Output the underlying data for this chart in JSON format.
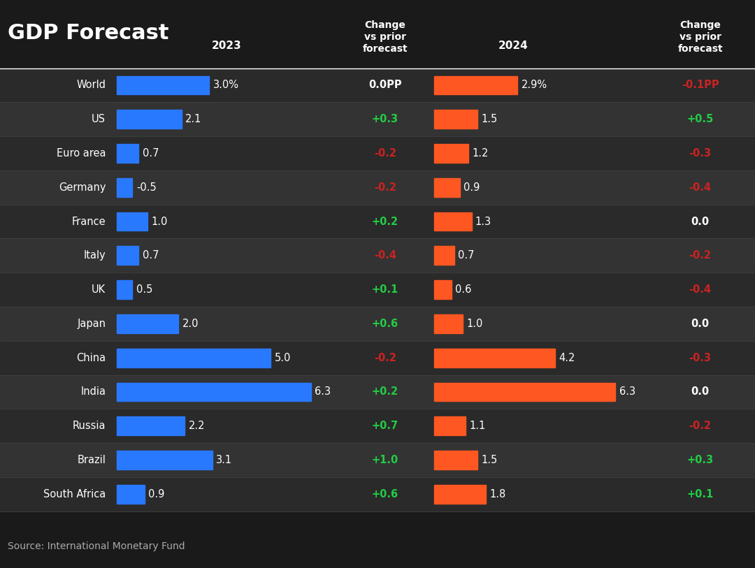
{
  "title": "GDP Forecast",
  "source": "Source: International Monetary Fund",
  "background_color": "#1a1a1a",
  "text_color": "#ffffff",
  "countries": [
    "World",
    "US",
    "Euro area",
    "Germany",
    "France",
    "Italy",
    "UK",
    "Japan",
    "China",
    "India",
    "Russia",
    "Brazil",
    "South Africa"
  ],
  "val_2023": [
    3.0,
    2.1,
    0.7,
    -0.5,
    1.0,
    0.7,
    0.5,
    2.0,
    5.0,
    6.3,
    2.2,
    3.1,
    0.9
  ],
  "label_2023": [
    "3.0%",
    "2.1",
    "0.7",
    "-0.5",
    "1.0",
    "0.7",
    "0.5",
    "2.0",
    "5.0",
    "6.3",
    "2.2",
    "3.1",
    "0.9"
  ],
  "change_2023": [
    "0.0PP",
    "+0.3",
    "-0.2",
    "-0.2",
    "+0.2",
    "-0.4",
    "+0.1",
    "+0.6",
    "-0.2",
    "+0.2",
    "+0.7",
    "+1.0",
    "+0.6"
  ],
  "change_2023_color": [
    "#ffffff",
    "#22cc44",
    "#cc2222",
    "#cc2222",
    "#22cc44",
    "#cc2222",
    "#22cc44",
    "#22cc44",
    "#cc2222",
    "#22cc44",
    "#22cc44",
    "#22cc44",
    "#22cc44"
  ],
  "val_2024": [
    2.9,
    1.5,
    1.2,
    0.9,
    1.3,
    0.7,
    0.6,
    1.0,
    4.2,
    6.3,
    1.1,
    1.5,
    1.8
  ],
  "label_2024": [
    "2.9%",
    "1.5",
    "1.2",
    "0.9",
    "1.3",
    "0.7",
    "0.6",
    "1.0",
    "4.2",
    "6.3",
    "1.1",
    "1.5",
    "1.8"
  ],
  "change_2024": [
    "-0.1PP",
    "+0.5",
    "-0.3",
    "-0.4",
    "0.0",
    "-0.2",
    "-0.4",
    "0.0",
    "-0.3",
    "0.0",
    "-0.2",
    "+0.3",
    "+0.1"
  ],
  "change_2024_color": [
    "#cc2222",
    "#22cc44",
    "#cc2222",
    "#cc2222",
    "#ffffff",
    "#cc2222",
    "#cc2222",
    "#ffffff",
    "#cc2222",
    "#ffffff",
    "#cc2222",
    "#22cc44",
    "#22cc44"
  ],
  "bar_color_2023": "#2979ff",
  "bar_color_2024": "#ff5722",
  "row_colors": [
    "#2a2a2a",
    "#333333"
  ],
  "header_line_color": "#ffffff",
  "col_sep_color": "#555555"
}
